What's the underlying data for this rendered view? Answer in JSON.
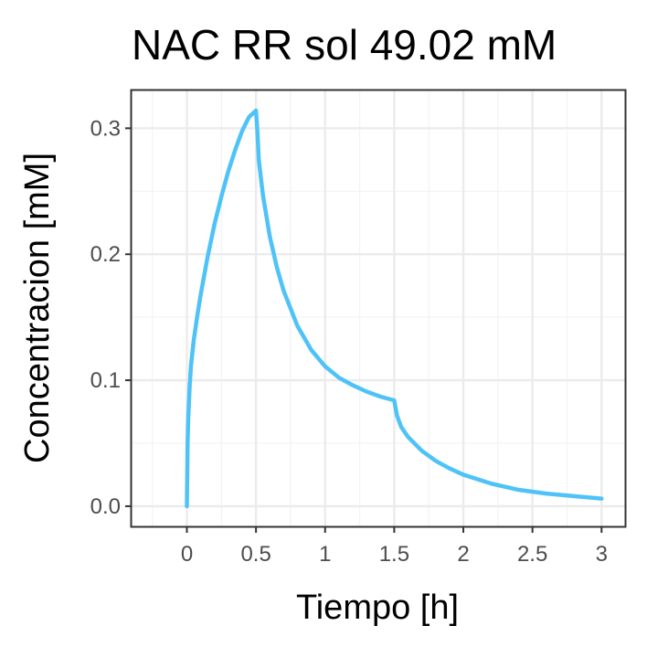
{
  "chart_data": {
    "type": "line",
    "title": "NAC RR sol 49.02 mM",
    "xlabel": "Tiempo [h]",
    "ylabel": "Concentracion [mM]",
    "xlim": [
      -0.4,
      3.17
    ],
    "ylim": [
      -0.016,
      0.33
    ],
    "x_ticks": [
      0,
      0.5,
      1,
      1.5,
      2,
      2.5,
      3
    ],
    "x_tick_labels": [
      "0",
      "0.5",
      "1",
      "1.5",
      "2",
      "2.5",
      "3"
    ],
    "y_ticks": [
      0.0,
      0.1,
      0.2,
      0.3
    ],
    "y_tick_labels": [
      "0.0",
      "0.1",
      "0.2",
      "0.3"
    ],
    "grid": true,
    "legend": "none",
    "series": [
      {
        "color": "#4fc3f7",
        "x": [
          0,
          0.005,
          0.01,
          0.02,
          0.03,
          0.05,
          0.075,
          0.1,
          0.15,
          0.2,
          0.25,
          0.3,
          0.35,
          0.4,
          0.45,
          0.5,
          0.51,
          0.52,
          0.55,
          0.6,
          0.65,
          0.7,
          0.8,
          0.9,
          1.0,
          1.1,
          1.2,
          1.3,
          1.4,
          1.5,
          1.51,
          1.52,
          1.55,
          1.6,
          1.7,
          1.8,
          1.9,
          2.0,
          2.2,
          2.4,
          2.6,
          2.8,
          3.0
        ],
        "y": [
          0.0,
          0.05,
          0.07,
          0.095,
          0.112,
          0.132,
          0.151,
          0.168,
          0.198,
          0.224,
          0.246,
          0.266,
          0.283,
          0.298,
          0.309,
          0.314,
          0.298,
          0.275,
          0.247,
          0.214,
          0.19,
          0.171,
          0.143,
          0.124,
          0.111,
          0.102,
          0.096,
          0.091,
          0.087,
          0.084,
          0.078,
          0.072,
          0.063,
          0.055,
          0.044,
          0.036,
          0.03,
          0.025,
          0.018,
          0.013,
          0.01,
          0.008,
          0.006
        ]
      }
    ]
  }
}
